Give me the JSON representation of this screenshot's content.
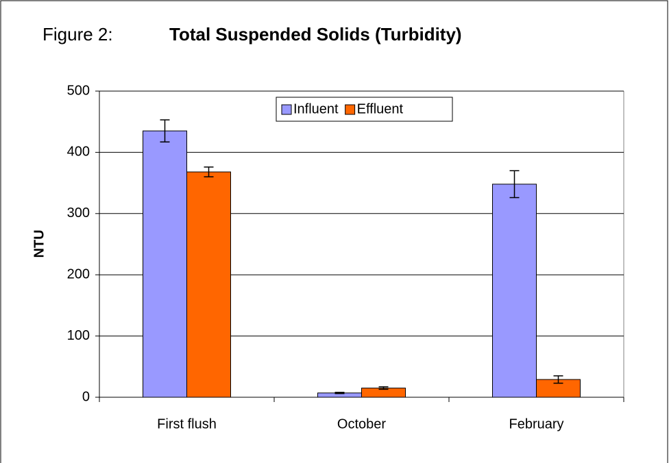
{
  "chart_data": {
    "type": "bar",
    "figure_label": "Figure 2:",
    "title": "Total Suspended Solids (Turbidity)",
    "ylabel": "NTU",
    "categories": [
      "First flush",
      "October",
      "February"
    ],
    "series": [
      {
        "name": "Influent",
        "color": "#9999ff",
        "values": [
          435,
          7,
          348
        ],
        "errors": [
          18,
          1,
          22
        ]
      },
      {
        "name": "Effluent",
        "color": "#ff6600",
        "values": [
          368,
          15,
          29
        ],
        "errors": [
          8,
          2,
          6
        ]
      }
    ],
    "ylim": [
      0,
      500
    ],
    "yticks": [
      0,
      100,
      200,
      300,
      400,
      500
    ],
    "grid": true,
    "legend": "top"
  }
}
